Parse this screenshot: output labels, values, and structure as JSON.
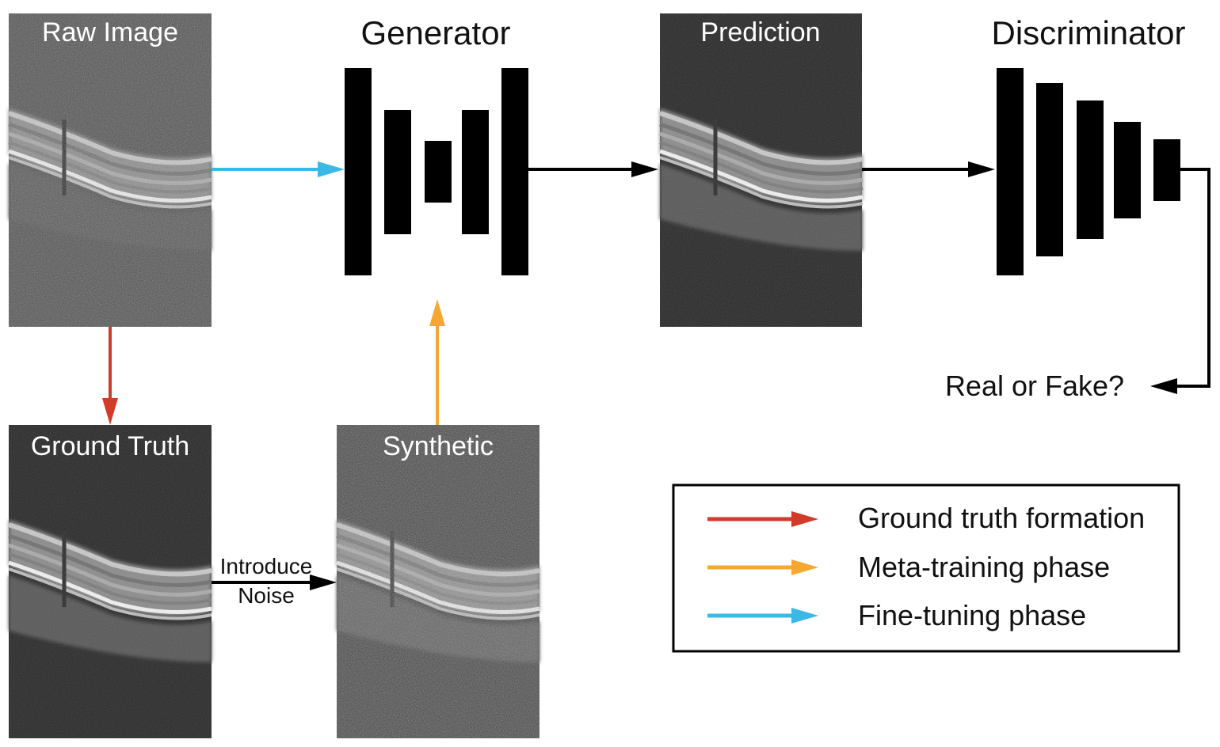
{
  "panels": {
    "raw_image": "Raw Image",
    "prediction": "Prediction",
    "ground_truth": "Ground Truth",
    "synthetic": "Synthetic"
  },
  "blocks": {
    "generator": "Generator",
    "discriminator": "Discriminator"
  },
  "noise_step": {
    "line1": "Introduce",
    "line2": "Noise"
  },
  "output_question": "Real or Fake?",
  "legend": {
    "items": [
      {
        "label": "Ground truth formation",
        "color": "#d23a2a"
      },
      {
        "label": "Meta-training phase",
        "color": "#f5a830"
      },
      {
        "label": "Fine-tuning phase",
        "color": "#3bb8e6"
      }
    ]
  },
  "colors": {
    "ground_truth_arrow": "#d23a2a",
    "meta_training_arrow": "#f5a830",
    "fine_tuning_arrow": "#3bb8e6",
    "flow_arrow": "#000000"
  }
}
